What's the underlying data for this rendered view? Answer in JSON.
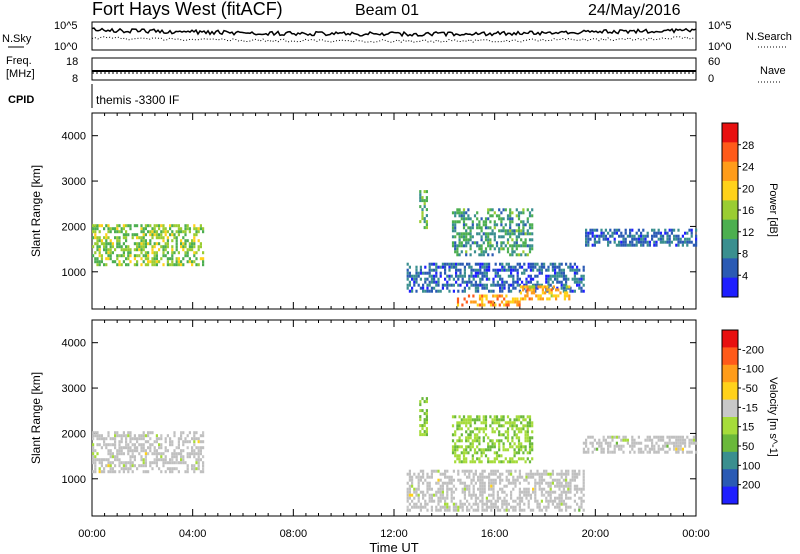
{
  "header": {
    "station": "Fort Hays West (fitACF)",
    "beam": "Beam 01",
    "date": "24/May/2016"
  },
  "summary_panels": {
    "noise": {
      "left_label": "N.Sky",
      "left_ticks": [
        "10^5",
        "10^0"
      ],
      "right_label": "N.Search",
      "right_ticks": [
        "10^5",
        "10^0"
      ]
    },
    "freq": {
      "left_label_1": "Freq.",
      "left_label_2": "[MHz]",
      "left_ticks": [
        "18",
        "8"
      ],
      "right_label": "Nave",
      "right_ticks": [
        "60",
        "0"
      ]
    },
    "cpid": {
      "label": "CPID",
      "text": "themis -3300 IF"
    }
  },
  "x_axis": {
    "label": "Time UT",
    "ticks": [
      "00:00",
      "04:00",
      "08:00",
      "12:00",
      "16:00",
      "20:00",
      "00:00"
    ]
  },
  "colors": {
    "power_scale": [
      "#1f1fff",
      "#2a5ab4",
      "#3a8f8f",
      "#4caf50",
      "#9acd32",
      "#ffd21a",
      "#ff9c1a",
      "#ff5a1a",
      "#e81010"
    ],
    "velocity_scale": [
      "#1f1fff",
      "#2a5ab4",
      "#3a8f8f",
      "#6ab83a",
      "#a6dc3a",
      "#c8c8c8",
      "#ffd21a",
      "#ff9c1a",
      "#ff5a1a",
      "#e81010"
    ],
    "ground_scatter": "#c0c0c0"
  },
  "chart_data": [
    {
      "type": "heatmap",
      "title": "Power",
      "xlabel": "Time UT",
      "ylabel": "Slant Range [km]",
      "xlim_hours": [
        0,
        24
      ],
      "ylim_km": [
        180,
        4500
      ],
      "yticks": [
        1000,
        2000,
        3000,
        4000
      ],
      "colorbar": {
        "label": "Power [dB]",
        "ticks": [
          4,
          8,
          12,
          16,
          20,
          24,
          28
        ],
        "range": [
          0,
          30
        ]
      },
      "patches": [
        {
          "t0": 0.0,
          "t1": 4.4,
          "r0": 1150,
          "r1": 2050,
          "value": 14
        },
        {
          "t0": 13.0,
          "t1": 13.3,
          "r0": 2000,
          "r1": 2800,
          "value": 12
        },
        {
          "t0": 12.5,
          "t1": 19.5,
          "r0": 600,
          "r1": 1200,
          "value": 6
        },
        {
          "t0": 14.5,
          "t1": 17.0,
          "r0": 300,
          "r1": 500,
          "value": 22
        },
        {
          "t0": 17.0,
          "t1": 19.0,
          "r0": 400,
          "r1": 700,
          "value": 20
        },
        {
          "t0": 14.3,
          "t1": 17.5,
          "r0": 1400,
          "r1": 2400,
          "value": 10
        },
        {
          "t0": 19.5,
          "t1": 24.0,
          "r0": 1600,
          "r1": 1950,
          "value": 6
        }
      ]
    },
    {
      "type": "heatmap",
      "title": "Velocity",
      "xlabel": "Time UT",
      "ylabel": "Slant Range [km]",
      "xlim_hours": [
        0,
        24
      ],
      "ylim_km": [
        180,
        4500
      ],
      "yticks": [
        1000,
        2000,
        3000,
        4000
      ],
      "colorbar": {
        "label": "Velocity [m s^-1]",
        "ticks": [
          200,
          100,
          50,
          15,
          -15,
          -50,
          -100,
          -200
        ],
        "range": [
          -250,
          250
        ]
      },
      "patches": [
        {
          "t0": 0.0,
          "t1": 4.4,
          "r0": 1150,
          "r1": 2050,
          "value": 0,
          "ground_scatter": true
        },
        {
          "t0": 13.0,
          "t1": 13.3,
          "r0": 2000,
          "r1": 2800,
          "value": 60
        },
        {
          "t0": 12.5,
          "t1": 19.5,
          "r0": 300,
          "r1": 1200,
          "value": 0,
          "ground_scatter": true
        },
        {
          "t0": 14.3,
          "t1": 17.5,
          "r0": 1400,
          "r1": 2400,
          "value": 40
        },
        {
          "t0": 19.5,
          "t1": 24.0,
          "r0": 1600,
          "r1": 1950,
          "value": 0,
          "ground_scatter": true
        }
      ]
    }
  ]
}
